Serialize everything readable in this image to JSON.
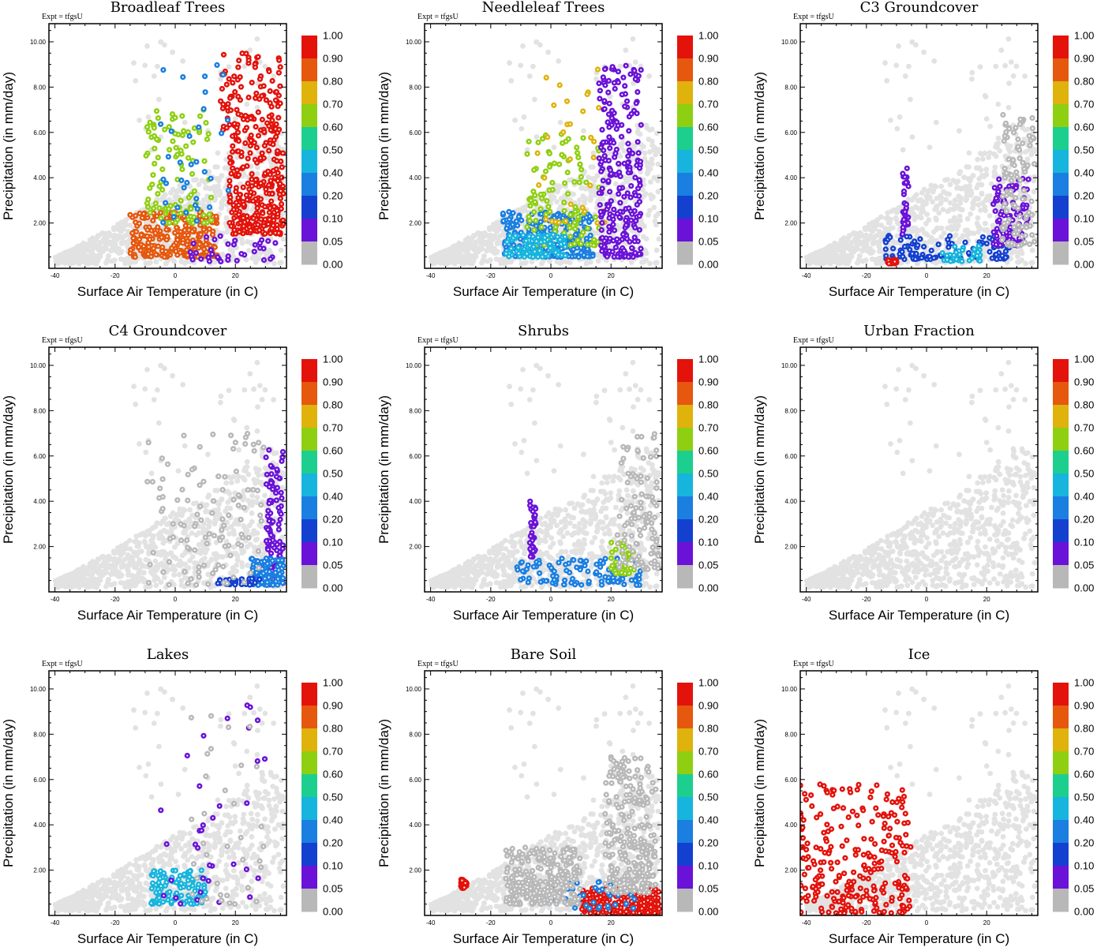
{
  "figure": {
    "expt_label": "Expt = tfgsU",
    "xlabel": "Surface Air Temperature (in C)",
    "ylabel": "Precipitation (in mm/day)",
    "xticks": [
      "-40",
      "-20",
      "0",
      "20"
    ],
    "yticks": [
      "2.00",
      "4.00",
      "6.00",
      "8.00",
      "10.00"
    ],
    "colorbar_labels": [
      "1.00",
      "0.90",
      "0.80",
      "0.70",
      "0.60",
      "0.50",
      "0.40",
      "0.20",
      "0.10",
      "0.05",
      "0.00"
    ],
    "colorbar_colors": [
      "#e3120b",
      "#e5580e",
      "#dfb20c",
      "#8fcf12",
      "#1ccf8e",
      "#17b5dd",
      "#1a7fe0",
      "#1440d0",
      "#6a12d8",
      "#b8b8b8"
    ],
    "background_point_color": "#e2e2e2"
  },
  "chart_data": [
    {
      "type": "scatter",
      "title": "Broadleaf Trees",
      "xlabel": "Surface Air Temperature (in C)",
      "ylabel": "Precipitation (in mm/day)",
      "xlim": [
        -42,
        37
      ],
      "ylim": [
        0,
        10.8
      ],
      "colorbar_range": [
        0.0,
        1.0
      ],
      "clusters": [
        {
          "x": [
            18,
            36
          ],
          "y": [
            1.5,
            6
          ],
          "value": 0.95,
          "density": "high"
        },
        {
          "x": [
            15,
            35
          ],
          "y": [
            6,
            9.5
          ],
          "value": 0.95,
          "density": "medium"
        },
        {
          "x": [
            -15,
            14
          ],
          "y": [
            0.5,
            2.5
          ],
          "value": 0.85,
          "density": "high"
        },
        {
          "x": [
            -10,
            12
          ],
          "y": [
            2,
            7
          ],
          "value": 0.7,
          "density": "medium"
        },
        {
          "x": [
            -5,
            18
          ],
          "y": [
            2,
            9
          ],
          "value": 0.3,
          "density": "low"
        },
        {
          "x": [
            5,
            35
          ],
          "y": [
            0.3,
            1.5
          ],
          "value": 0.08,
          "density": "low"
        }
      ]
    },
    {
      "type": "scatter",
      "title": "Needleleaf Trees",
      "xlabel": "Surface Air Temperature (in C)",
      "ylabel": "Precipitation (in mm/day)",
      "xlim": [
        -42,
        37
      ],
      "ylim": [
        0,
        10.8
      ],
      "colorbar_range": [
        0.0,
        1.0
      ],
      "clusters": [
        {
          "x": [
            -16,
            14
          ],
          "y": [
            0.5,
            2.5
          ],
          "value": 0.3,
          "density": "high"
        },
        {
          "x": [
            -8,
            16
          ],
          "y": [
            1,
            6
          ],
          "value": 0.65,
          "density": "medium"
        },
        {
          "x": [
            -5,
            18
          ],
          "y": [
            2,
            9.5
          ],
          "value": 0.75,
          "density": "low"
        },
        {
          "x": [
            16,
            30
          ],
          "y": [
            0.5,
            9
          ],
          "value": 0.07,
          "density": "high"
        },
        {
          "x": [
            -15,
            5
          ],
          "y": [
            0.5,
            1.5
          ],
          "value": 0.45,
          "density": "medium"
        }
      ]
    },
    {
      "type": "scatter",
      "title": "C3 Groundcover",
      "xlabel": "Surface Air Temperature (in C)",
      "ylabel": "Precipitation (in mm/day)",
      "xlim": [
        -42,
        37
      ],
      "ylim": [
        0,
        10.8
      ],
      "colorbar_range": [
        0.0,
        1.0
      ],
      "clusters": [
        {
          "x": [
            -14,
            28
          ],
          "y": [
            0.4,
            1.5
          ],
          "value": 0.15,
          "density": "medium"
        },
        {
          "x": [
            -13,
            -10
          ],
          "y": [
            0.2,
            0.4
          ],
          "value": 0.95,
          "density": "low"
        },
        {
          "x": [
            5,
            18
          ],
          "y": [
            0.3,
            1.0
          ],
          "value": 0.45,
          "density": "low"
        },
        {
          "x": [
            -8,
            -6
          ],
          "y": [
            1.5,
            4.5
          ],
          "value": 0.1,
          "density": "low"
        },
        {
          "x": [
            22,
            34
          ],
          "y": [
            1,
            4
          ],
          "value": 0.07,
          "density": "medium"
        },
        {
          "x": [
            25,
            36
          ],
          "y": [
            1,
            7
          ],
          "value": 0.0,
          "density": "medium"
        }
      ]
    },
    {
      "type": "scatter",
      "title": "C4 Groundcover",
      "xlabel": "Surface Air Temperature (in C)",
      "ylabel": "Precipitation (in mm/day)",
      "xlim": [
        -42,
        37
      ],
      "ylim": [
        0,
        10.8
      ],
      "colorbar_range": [
        0.0,
        1.0
      ],
      "clusters": [
        {
          "x": [
            30,
            36
          ],
          "y": [
            0.3,
            6.3
          ],
          "value": 0.07,
          "density": "medium"
        },
        {
          "x": [
            25,
            36
          ],
          "y": [
            0.3,
            1.5
          ],
          "value": 0.4,
          "density": "medium"
        },
        {
          "x": [
            14,
            28
          ],
          "y": [
            0.3,
            0.6
          ],
          "value": 0.12,
          "density": "low"
        },
        {
          "x": [
            -10,
            30
          ],
          "y": [
            0.3,
            7
          ],
          "value": 0.0,
          "density": "medium"
        }
      ]
    },
    {
      "type": "scatter",
      "title": "Shrubs",
      "xlabel": "Surface Air Temperature (in C)",
      "ylabel": "Precipitation (in mm/day)",
      "xlim": [
        -42,
        37
      ],
      "ylim": [
        0,
        10.8
      ],
      "colorbar_range": [
        0.0,
        1.0
      ],
      "clusters": [
        {
          "x": [
            -12,
            30
          ],
          "y": [
            0.3,
            1.5
          ],
          "value": 0.4,
          "density": "medium"
        },
        {
          "x": [
            -7,
            -5
          ],
          "y": [
            1.5,
            4
          ],
          "value": 0.1,
          "density": "low"
        },
        {
          "x": [
            20,
            28
          ],
          "y": [
            0.8,
            2.2
          ],
          "value": 0.65,
          "density": "low"
        },
        {
          "x": [
            22,
            36
          ],
          "y": [
            1,
            7
          ],
          "value": 0.0,
          "density": "medium"
        }
      ]
    },
    {
      "type": "scatter",
      "title": "Urban Fraction",
      "xlabel": "Surface Air Temperature (in C)",
      "ylabel": "Precipitation (in mm/day)",
      "xlim": [
        -42,
        37
      ],
      "ylim": [
        0,
        10.8
      ],
      "colorbar_range": [
        0.0,
        1.0
      ],
      "clusters": []
    },
    {
      "type": "scatter",
      "title": "Lakes",
      "xlabel": "Surface Air Temperature (in C)",
      "ylabel": "Precipitation (in mm/day)",
      "xlim": [
        -42,
        37
      ],
      "ylim": [
        0,
        10.8
      ],
      "colorbar_range": [
        0.0,
        1.0
      ],
      "clusters": [
        {
          "x": [
            -8,
            10
          ],
          "y": [
            0.5,
            2
          ],
          "value": 0.45,
          "density": "medium"
        },
        {
          "x": [
            -5,
            30
          ],
          "y": [
            0.3,
            9.6
          ],
          "value": 0.1,
          "density": "low"
        },
        {
          "x": [
            5,
            30
          ],
          "y": [
            0.5,
            9
          ],
          "value": 0.0,
          "density": "low"
        }
      ]
    },
    {
      "type": "scatter",
      "title": "Bare Soil",
      "xlabel": "Surface Air Temperature (in C)",
      "ylabel": "Precipitation (in mm/day)",
      "xlim": [
        -42,
        37
      ],
      "ylim": [
        0,
        10.8
      ],
      "colorbar_range": [
        0.0,
        1.0
      ],
      "clusters": [
        {
          "x": [
            10,
            36
          ],
          "y": [
            0.1,
            1.2
          ],
          "value": 0.95,
          "density": "high"
        },
        {
          "x": [
            0,
            30
          ],
          "y": [
            0.3,
            1.5
          ],
          "value": 0.3,
          "density": "low"
        },
        {
          "x": [
            -15,
            10
          ],
          "y": [
            0.5,
            3
          ],
          "value": 0.0,
          "density": "high"
        },
        {
          "x": [
            18,
            35
          ],
          "y": [
            1,
            7
          ],
          "value": 0.0,
          "density": "high"
        },
        {
          "x": [
            -30,
            -28
          ],
          "y": [
            1.2,
            1.6
          ],
          "value": 0.95,
          "density": "low"
        }
      ]
    },
    {
      "type": "scatter",
      "title": "Ice",
      "xlabel": "Surface Air Temperature (in C)",
      "ylabel": "Precipitation (in mm/day)",
      "xlim": [
        -42,
        37
      ],
      "ylim": [
        0,
        10.8
      ],
      "colorbar_range": [
        0.0,
        1.0
      ],
      "clusters": [
        {
          "x": [
            -42,
            -5
          ],
          "y": [
            0.1,
            5.8
          ],
          "value": 0.95,
          "density": "high"
        }
      ]
    }
  ]
}
